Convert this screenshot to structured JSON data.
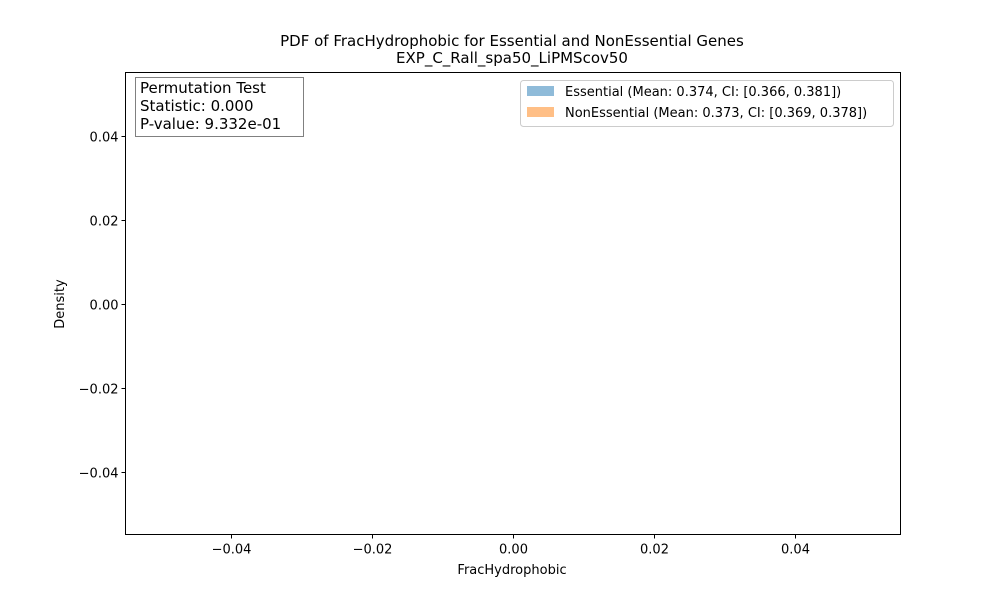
{
  "chart_data": {
    "type": "bar",
    "title": "PDF of FracHydrophobic for Essential and NonEssential Genes",
    "subtitle": "EXP_C_Rall_spa50_LiPMScov50",
    "xlabel": "FracHydrophobic",
    "ylabel": "Density",
    "xlim": [
      -0.055,
      0.055
    ],
    "ylim": [
      -0.055,
      0.055
    ],
    "xticks": [
      -0.04,
      -0.02,
      0.0,
      0.02,
      0.04
    ],
    "xtick_labels": [
      "−0.04",
      "−0.02",
      "0.00",
      "0.02",
      "0.04"
    ],
    "yticks": [
      0.04,
      0.02,
      0.0,
      -0.02,
      -0.04
    ],
    "ytick_labels": [
      "0.04",
      "0.02",
      "0.00",
      "−0.02",
      "−0.04"
    ],
    "grid": false,
    "legend_position": "top-right",
    "series": [
      {
        "name": "Essential (Mean: 0.374, CI: [0.366, 0.381])",
        "color": "#8fbbd9",
        "values": []
      },
      {
        "name": "NonEssential (Mean: 0.373, CI: [0.369, 0.378])",
        "color": "#ffbf86",
        "values": []
      }
    ]
  },
  "stats_box": {
    "title": "Permutation Test",
    "statistic": "Statistic: 0.000",
    "pvalue": "P-value: 9.332e-01"
  }
}
